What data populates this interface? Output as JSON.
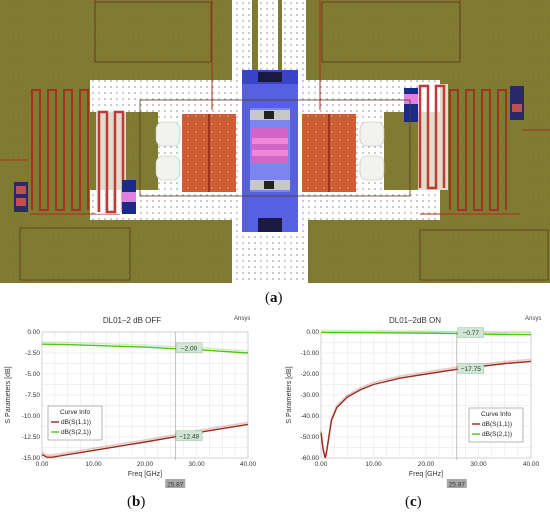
{
  "captions": {
    "a": "a",
    "b": "b",
    "c": "c"
  },
  "plot_b": {
    "title": "DL01–2 dB OFF",
    "brand": "Ansys",
    "marker_x_label": "25.87",
    "marker_s21_label": "−2.00",
    "marker_s11_label": "−12.48",
    "legend_title": "Curve Info",
    "legend_items": [
      "dB(S(1,1))",
      "dB(S(2,1))"
    ]
  },
  "plot_c": {
    "title": "DL01–2dB ON",
    "brand": "Ansys",
    "marker_x_label": "25.87",
    "marker_s21_label": "−0.77",
    "marker_s11_label": "−17.75",
    "legend_title": "Curve Info",
    "legend_items": [
      "dB(S(1,1))",
      "dB(S(2,1))"
    ]
  },
  "colors": {
    "s11": "#9b2a1c",
    "s21": "#4fc41a",
    "chip_bg": "#7c7a30"
  },
  "chart_data": [
    {
      "type": "line",
      "title": "DL01–2 dB OFF",
      "xlabel": "Freq [GHz]",
      "ylabel": "S Parameters [dB]",
      "xlim": [
        0,
        40
      ],
      "ylim": [
        -15,
        0
      ],
      "xticks": [
        "0.00",
        "10.00",
        "20.00",
        "30.00",
        "40.00"
      ],
      "yticks": [
        "0.00",
        "-2.50",
        "-5.00",
        "-7.50",
        "-10.00",
        "-12.50",
        "-15.00"
      ],
      "grid": true,
      "legend": "bottom-left",
      "series": [
        {
          "name": "dB(S(1,1))",
          "x": [
            0,
            1,
            2,
            5,
            10,
            15,
            20,
            25.87,
            30,
            35,
            40
          ],
          "values": [
            -14.6,
            -14.9,
            -14.9,
            -14.6,
            -14.1,
            -13.6,
            -13.1,
            -12.48,
            -12.0,
            -11.5,
            -11.0
          ]
        },
        {
          "name": "dB(S(2,1))",
          "x": [
            0,
            5,
            10,
            15,
            20,
            25.87,
            30,
            35,
            40
          ],
          "values": [
            -1.45,
            -1.5,
            -1.6,
            -1.7,
            -1.8,
            -2.0,
            -2.1,
            -2.3,
            -2.5
          ]
        }
      ]
    },
    {
      "type": "line",
      "title": "DL01–2dB ON",
      "xlabel": "Freq [GHz]",
      "ylabel": "S Parameters [dB]",
      "xlim": [
        0,
        40
      ],
      "ylim": [
        -60,
        0
      ],
      "xticks": [
        "0.00",
        "10.00",
        "20.00",
        "30.00",
        "40.00"
      ],
      "yticks": [
        "0.00",
        "-10.00",
        "-20.00",
        "-30.00",
        "-40.00",
        "-50.00",
        "-60.00"
      ],
      "grid": true,
      "legend": "bottom-right",
      "series": [
        {
          "name": "dB(S(1,1))",
          "x": [
            0,
            0.4,
            0.8,
            1.0,
            1.5,
            2,
            3,
            5,
            7.5,
            10,
            15,
            20,
            25.87,
            30,
            35,
            40
          ],
          "values": [
            -48,
            -56,
            -60,
            -58,
            -50,
            -42,
            -36,
            -31,
            -27.5,
            -25,
            -22,
            -20,
            -17.75,
            -16.5,
            -15,
            -14
          ]
        },
        {
          "name": "dB(S(2,1))",
          "x": [
            0,
            10,
            20,
            25.87,
            30,
            40
          ],
          "values": [
            -0.2,
            -0.35,
            -0.55,
            -0.77,
            -0.95,
            -1.3
          ]
        }
      ]
    }
  ]
}
